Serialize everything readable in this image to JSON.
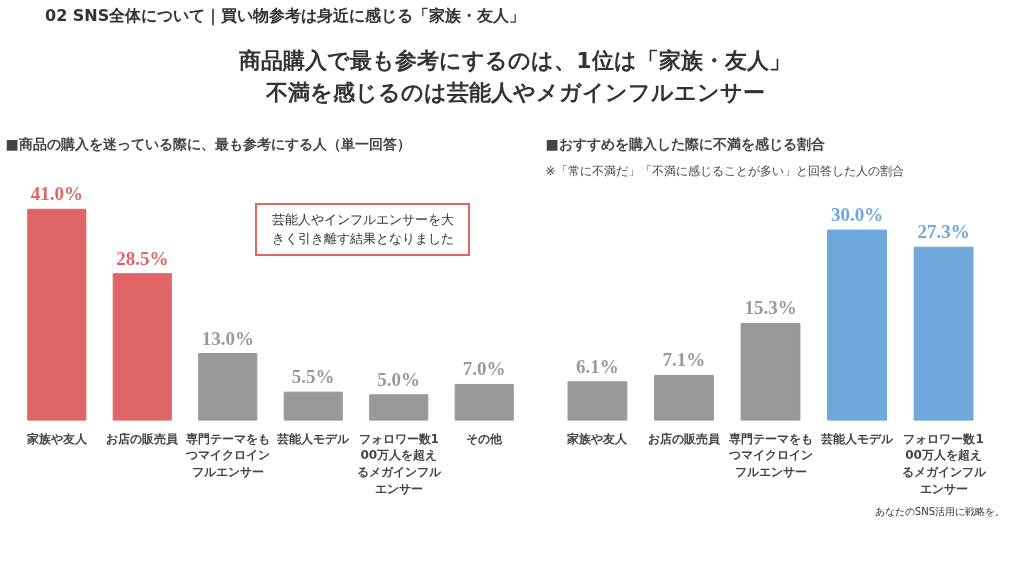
{
  "chart_data": [
    {
      "type": "bar",
      "title": "■商品の購入を迷っている際に、最も参考にする人（単一回答）",
      "annotations": [
        "02 SNS全体について｜買い物参考は身近に感じる「家族・友人」",
        "商品購入で最も参考にするのは、1位は「家族・友人」",
        "不満を感じるのは芸能人やメガインフルエンサー",
        "芸能人やインフルエンサーを大きく引き離す結果となりました"
      ],
      "categories": [
        "家族や友人",
        "お店の販売員",
        "専門テーマをもつマイクロインフルエンサー",
        "芸能人モデル",
        "フォロワー数100万人を超えるメガインフルエンサー",
        "その他"
      ],
      "values": [
        41.0,
        28.5,
        13.0,
        5.5,
        5.0,
        7.0
      ],
      "colors": [
        "#e06666",
        "#e06666",
        "#999999",
        "#999999",
        "#999999",
        "#999999"
      ],
      "value_labels": [
        "41.0%",
        "28.5%",
        "13.0%",
        "5.5%",
        "5.0%",
        "7.0%"
      ],
      "grid": false
    },
    {
      "type": "bar",
      "title": "■おすすめを購入した際に不満を感じる割合",
      "subtitle": "※「常に不満だ」「不満に感じることが多い」と回答した人の割合",
      "annotations": [
        "あなたのSNS活用に戦略を。"
      ],
      "categories": [
        "家族や友人",
        "お店の販売員",
        "専門テーマをもつマイクロインフルエンサー",
        "芸能人モデル",
        "フォロワー数100万人を超えるメガインフルエンサー"
      ],
      "values": [
        6.1,
        7.1,
        15.3,
        30.0,
        27.3
      ],
      "colors": [
        "#999999",
        "#999999",
        "#999999",
        "#6fa8dc",
        "#6fa8dc"
      ],
      "value_labels": [
        "6.1%",
        "7.1%",
        "15.3%",
        "30.0%",
        "27.3%"
      ],
      "grid": false
    }
  ]
}
